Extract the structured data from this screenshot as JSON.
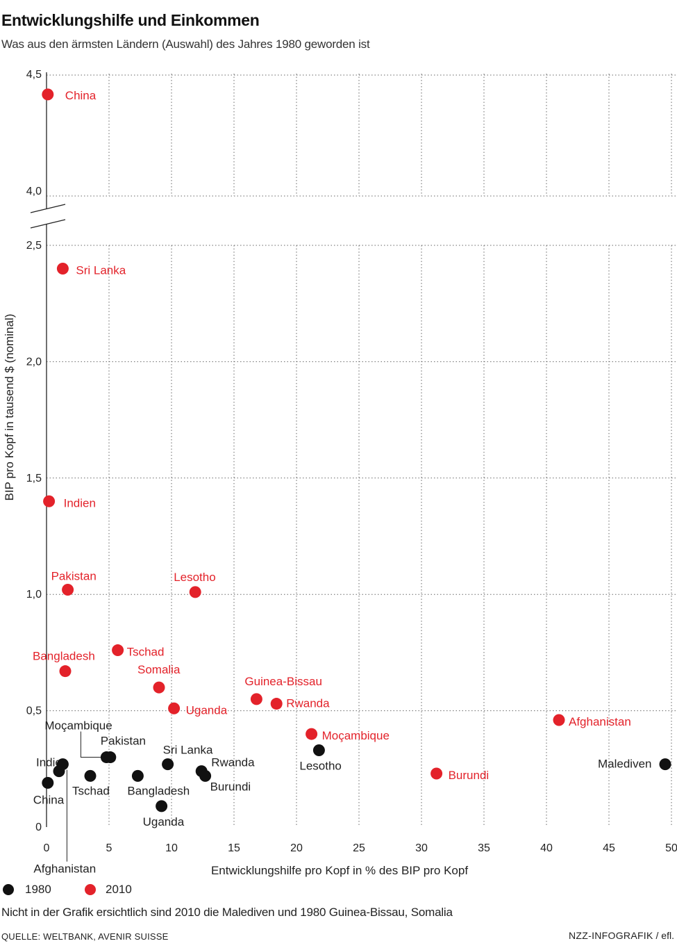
{
  "header": {
    "title": "Entwicklungshilfe und Einkommen",
    "subtitle": "Was aus den ärmsten Ländern (Auswahl) des Jahres 1980 geworden ist"
  },
  "colors": {
    "y1980": "#111111",
    "y2010": "#e3222a",
    "grid": "#666666"
  },
  "chart_data": {
    "type": "scatter",
    "xlabel": "Entwicklungshilfe pro Kopf in % des BIP pro Kopf",
    "ylabel": "BIP pro Kopf in tausend $ (nominal)",
    "xlim": [
      0,
      50
    ],
    "ylim_lower": [
      0,
      2.5
    ],
    "ylim_upper": [
      4.0,
      4.5
    ],
    "axis_break": true,
    "grid": true,
    "xticks": [
      "0",
      "5",
      "10",
      "15",
      "20",
      "25",
      "30",
      "35",
      "40",
      "45",
      "50"
    ],
    "yticks_lower": [
      "0",
      "0,5",
      "1,0",
      "1,5",
      "2,0",
      "2,5"
    ],
    "yticks_upper": [
      "4,0",
      "4,5"
    ],
    "series": [
      {
        "name": "1980",
        "color": "#111111",
        "points": [
          {
            "label": "China",
            "x": 0.1,
            "y": 0.19
          },
          {
            "label": "Indien",
            "x": 1.0,
            "y": 0.24
          },
          {
            "label": "Afghanistan",
            "x": 1.3,
            "y": 0.27
          },
          {
            "label": "Tschad",
            "x": 3.5,
            "y": 0.22
          },
          {
            "label": "Moçambique",
            "x": 4.8,
            "y": 0.3
          },
          {
            "label": "Pakistan",
            "x": 5.1,
            "y": 0.3
          },
          {
            "label": "Bangladesh",
            "x": 7.3,
            "y": 0.22
          },
          {
            "label": "Uganda",
            "x": 9.2,
            "y": 0.09
          },
          {
            "label": "Sri Lanka",
            "x": 9.7,
            "y": 0.27
          },
          {
            "label": "Rwanda",
            "x": 12.4,
            "y": 0.24
          },
          {
            "label": "Burundi",
            "x": 12.7,
            "y": 0.22
          },
          {
            "label": "Lesotho",
            "x": 21.8,
            "y": 0.33
          },
          {
            "label": "Malediven",
            "x": 49.5,
            "y": 0.27
          }
        ]
      },
      {
        "name": "2010",
        "color": "#e3222a",
        "points": [
          {
            "label": "China",
            "x": 0.1,
            "y": 4.42
          },
          {
            "label": "Sri Lanka",
            "x": 1.3,
            "y": 2.4
          },
          {
            "label": "Indien",
            "x": 0.2,
            "y": 1.4
          },
          {
            "label": "Pakistan",
            "x": 1.7,
            "y": 1.02
          },
          {
            "label": "Lesotho",
            "x": 11.9,
            "y": 1.01
          },
          {
            "label": "Tschad",
            "x": 5.7,
            "y": 0.76
          },
          {
            "label": "Bangladesh",
            "x": 1.5,
            "y": 0.67
          },
          {
            "label": "Somalia",
            "x": 9.0,
            "y": 0.6
          },
          {
            "label": "Uganda",
            "x": 10.2,
            "y": 0.51
          },
          {
            "label": "Guinea-Bissau",
            "x": 16.8,
            "y": 0.55
          },
          {
            "label": "Rwanda",
            "x": 18.4,
            "y": 0.53
          },
          {
            "label": "Moçambique",
            "x": 21.2,
            "y": 0.4
          },
          {
            "label": "Afghanistan",
            "x": 41.0,
            "y": 0.46
          },
          {
            "label": "Burundi",
            "x": 31.2,
            "y": 0.23
          }
        ]
      }
    ]
  },
  "legend": [
    {
      "label": "1980",
      "color": "#111111"
    },
    {
      "label": "2010",
      "color": "#e3222a"
    }
  ],
  "footnote": "Nicht in der Grafik ersichtlich sind 2010 die Malediven und 1980 Guinea-Bissau, Somalia",
  "source": "QUELLE: WELTBANK, AVENIR SUISSE",
  "credit": {
    "org": "NZZ-INFOGRAFIK",
    "author": "/ efl."
  }
}
